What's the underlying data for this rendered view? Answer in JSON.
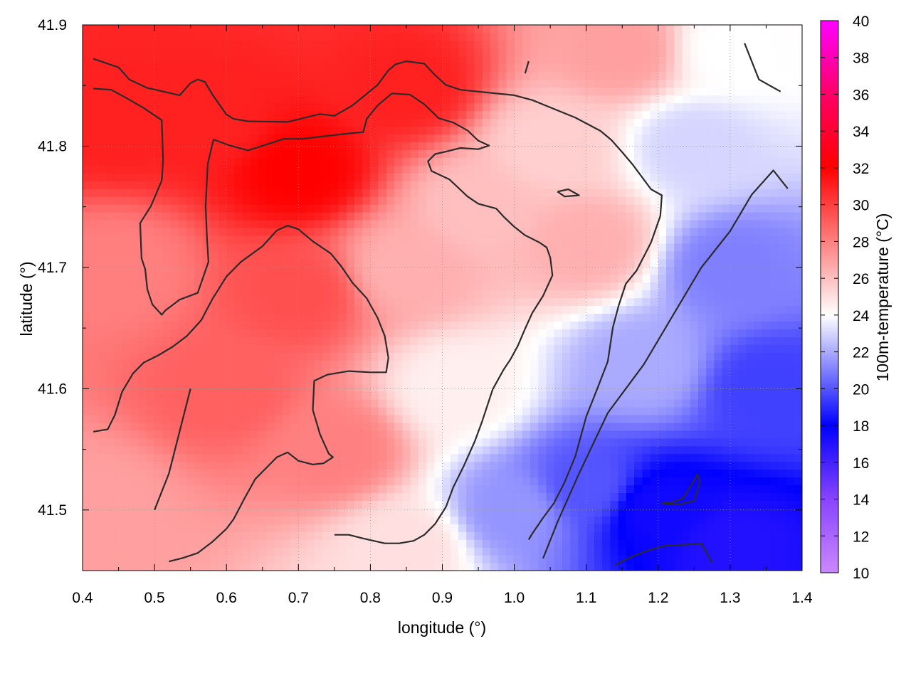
{
  "chart_data": {
    "type": "heatmap",
    "xlabel": "longitude (°)",
    "ylabel": "latitude (°)",
    "colorbar_label": "100m-temperature (°C)",
    "xlim": [
      0.4,
      1.4
    ],
    "ylim": [
      41.45,
      41.9
    ],
    "x_ticks": [
      "0.4",
      "0.5",
      "0.6",
      "0.7",
      "0.8",
      "0.9",
      "1.0",
      "1.1",
      "1.2",
      "1.3",
      "1.4"
    ],
    "y_ticks": [
      "41.5",
      "41.6",
      "41.7",
      "41.8",
      "41.9"
    ],
    "colorbar_range": [
      10,
      40
    ],
    "colorbar_ticks": [
      "10",
      "12",
      "14",
      "16",
      "18",
      "20",
      "22",
      "24",
      "26",
      "28",
      "30",
      "32",
      "34",
      "36",
      "38",
      "40"
    ],
    "colorscale": [
      {
        "value": 10,
        "color": "#cc88ff"
      },
      {
        "value": 14,
        "color": "#8844ff"
      },
      {
        "value": 18,
        "color": "#0000ff"
      },
      {
        "value": 24,
        "color": "#ffffff"
      },
      {
        "value": 32,
        "color": "#ff0000"
      },
      {
        "value": 36,
        "color": "#ff0066"
      },
      {
        "value": 40,
        "color": "#ff00ff"
      }
    ],
    "grid": true,
    "field": {
      "description_points": [
        {
          "lon": 0.45,
          "lat": 41.82,
          "temp": 31
        },
        {
          "lon": 0.7,
          "lat": 41.78,
          "temp": 32
        },
        {
          "lon": 0.58,
          "lat": 41.82,
          "temp": 31
        },
        {
          "lon": 0.85,
          "lat": 41.85,
          "temp": 31
        },
        {
          "lon": 0.6,
          "lat": 41.6,
          "temp": 29
        },
        {
          "lon": 0.7,
          "lat": 41.68,
          "temp": 29.5
        },
        {
          "lon": 0.45,
          "lat": 41.7,
          "temp": 28
        },
        {
          "lon": 0.42,
          "lat": 41.5,
          "temp": 27
        },
        {
          "lon": 0.75,
          "lat": 41.55,
          "temp": 28
        },
        {
          "lon": 0.85,
          "lat": 41.7,
          "temp": 26.5
        },
        {
          "lon": 0.95,
          "lat": 41.75,
          "temp": 26
        },
        {
          "lon": 1.05,
          "lat": 41.8,
          "temp": 25.5
        },
        {
          "lon": 1.1,
          "lat": 41.72,
          "temp": 26.5
        },
        {
          "lon": 0.92,
          "lat": 41.6,
          "temp": 24.5
        },
        {
          "lon": 0.85,
          "lat": 41.47,
          "temp": 25
        },
        {
          "lon": 1.0,
          "lat": 41.5,
          "temp": 21.5
        },
        {
          "lon": 1.1,
          "lat": 41.52,
          "temp": 20
        },
        {
          "lon": 1.2,
          "lat": 41.5,
          "temp": 17.5
        },
        {
          "lon": 1.3,
          "lat": 41.47,
          "temp": 17
        },
        {
          "lon": 1.35,
          "lat": 41.6,
          "temp": 19.5
        },
        {
          "lon": 1.3,
          "lat": 41.7,
          "temp": 21
        },
        {
          "lon": 1.25,
          "lat": 41.8,
          "temp": 23
        },
        {
          "lon": 1.3,
          "lat": 41.88,
          "temp": 24
        },
        {
          "lon": 1.18,
          "lat": 41.62,
          "temp": 22
        },
        {
          "lon": 1.15,
          "lat": 41.88,
          "temp": 27
        }
      ]
    },
    "contours": [
      [
        [
          0.415,
          41.872
        ],
        [
          0.45,
          41.865
        ],
        [
          0.465,
          41.855
        ],
        [
          0.49,
          41.848
        ],
        [
          0.535,
          41.842
        ],
        [
          0.55,
          41.852
        ],
        [
          0.56,
          41.855
        ],
        [
          0.57,
          41.853
        ],
        [
          0.58,
          41.843
        ],
        [
          0.6,
          41.826
        ],
        [
          0.61,
          41.8225
        ],
        [
          0.63,
          41.8205
        ],
        [
          0.685,
          41.82
        ],
        [
          0.73,
          41.8265
        ],
        [
          0.75,
          41.825
        ],
        [
          0.775,
          41.8335
        ],
        [
          0.81,
          41.8505
        ],
        [
          0.825,
          41.8625
        ],
        [
          0.835,
          41.8675
        ],
        [
          0.85,
          41.87
        ],
        [
          0.875,
          41.868
        ],
        [
          0.89,
          41.8585
        ],
        [
          0.905,
          41.8505
        ],
        [
          0.925,
          41.8465
        ],
        [
          1.0,
          41.842
        ],
        [
          1.025,
          41.838
        ],
        [
          1.085,
          41.8235
        ],
        [
          1.12,
          41.8125
        ],
        [
          1.135,
          41.805
        ],
        [
          1.15,
          41.795
        ],
        [
          1.165,
          41.7845
        ],
        [
          1.19,
          41.7645
        ],
        [
          1.205,
          41.7595
        ],
        [
          1.203,
          41.7425
        ],
        [
          1.19,
          41.7205
        ],
        [
          1.17,
          41.6975
        ],
        [
          1.155,
          41.6865
        ],
        [
          1.145,
          41.6685
        ],
        [
          1.137,
          41.6505
        ],
        [
          1.13,
          41.6225
        ],
        [
          1.115,
          41.5995
        ],
        [
          1.1,
          41.577
        ],
        [
          1.085,
          41.5445
        ],
        [
          1.07,
          41.523
        ],
        [
          1.055,
          41.5055
        ],
        [
          1.04,
          41.4935
        ],
        [
          1.025,
          41.4805
        ],
        [
          1.02,
          41.4755
        ]
      ],
      [
        [
          0.415,
          41.8475
        ],
        [
          0.44,
          41.8465
        ],
        [
          0.46,
          41.84
        ],
        [
          0.485,
          41.8315
        ],
        [
          0.51,
          41.8215
        ],
        [
          0.512,
          41.7885
        ],
        [
          0.51,
          41.7715
        ],
        [
          0.495,
          41.7505
        ],
        [
          0.48,
          41.7365
        ],
        [
          0.482,
          41.7075
        ],
        [
          0.487,
          41.6985
        ],
        [
          0.49,
          41.682
        ],
        [
          0.497,
          41.6695
        ],
        [
          0.51,
          41.661
        ],
        [
          0.515,
          41.6645
        ],
        [
          0.535,
          41.6735
        ],
        [
          0.56,
          41.679
        ],
        [
          0.565,
          41.6875
        ],
        [
          0.575,
          41.7045
        ],
        [
          0.573,
          41.7235
        ],
        [
          0.571,
          41.7505
        ],
        [
          0.574,
          41.7855
        ],
        [
          0.582,
          41.8055
        ],
        [
          0.605,
          41.8005
        ],
        [
          0.63,
          41.7965
        ],
        [
          0.68,
          41.806
        ],
        [
          0.705,
          41.806
        ],
        [
          0.77,
          41.8105
        ],
        [
          0.79,
          41.8115
        ],
        [
          0.795,
          41.8225
        ],
        [
          0.81,
          41.8335
        ],
        [
          0.83,
          41.8435
        ],
        [
          0.855,
          41.8425
        ],
        [
          0.875,
          41.8345
        ],
        [
          0.895,
          41.823
        ],
        [
          0.915,
          41.8195
        ],
        [
          0.935,
          41.813
        ],
        [
          0.95,
          41.8045
        ],
        [
          0.965,
          41.8005
        ],
        [
          0.95,
          41.7975
        ],
        [
          0.925,
          41.7985
        ],
        [
          0.905,
          41.7955
        ],
        [
          0.89,
          41.7935
        ],
        [
          0.88,
          41.7875
        ],
        [
          0.885,
          41.7795
        ],
        [
          0.91,
          41.7725
        ],
        [
          0.935,
          41.7585
        ],
        [
          0.95,
          41.7525
        ],
        [
          0.975,
          41.7485
        ],
        [
          0.985,
          41.742
        ],
        [
          1.0,
          41.7335
        ],
        [
          1.015,
          41.7265
        ],
        [
          1.035,
          41.7205
        ],
        [
          1.045,
          41.7165
        ],
        [
          1.05,
          41.708
        ],
        [
          1.053,
          41.6935
        ],
        [
          1.04,
          41.6765
        ],
        [
          1.025,
          41.6625
        ],
        [
          1.015,
          41.6495
        ],
        [
          1.005,
          41.6355
        ],
        [
          0.995,
          41.6245
        ],
        [
          0.985,
          41.6155
        ],
        [
          0.97,
          41.5995
        ],
        [
          0.955,
          41.5725
        ],
        [
          0.945,
          41.5565
        ],
        [
          0.93,
          41.5365
        ],
        [
          0.915,
          41.5185
        ],
        [
          0.905,
          41.5025
        ],
        [
          0.89,
          41.4885
        ],
        [
          0.875,
          41.4795
        ],
        [
          0.86,
          41.4745
        ],
        [
          0.84,
          41.4725
        ],
        [
          0.82,
          41.4725
        ],
        [
          0.79,
          41.4765
        ],
        [
          0.77,
          41.4795
        ],
        [
          0.75,
          41.4795
        ]
      ],
      [
        [
          0.415,
          41.5645
        ],
        [
          0.435,
          41.5665
        ],
        [
          0.445,
          41.5785
        ],
        [
          0.455,
          41.5975
        ],
        [
          0.47,
          41.6125
        ],
        [
          0.485,
          41.6215
        ],
        [
          0.505,
          41.6275
        ],
        [
          0.525,
          41.6345
        ],
        [
          0.545,
          41.6435
        ],
        [
          0.565,
          41.6565
        ],
        [
          0.58,
          41.6735
        ],
        [
          0.6,
          41.6925
        ],
        [
          0.62,
          41.7045
        ],
        [
          0.65,
          41.7175
        ],
        [
          0.67,
          41.7305
        ],
        [
          0.685,
          41.7345
        ],
        [
          0.7,
          41.7315
        ],
        [
          0.72,
          41.7215
        ],
        [
          0.745,
          41.7115
        ],
        [
          0.76,
          41.7005
        ],
        [
          0.775,
          41.6875
        ],
        [
          0.795,
          41.6745
        ],
        [
          0.81,
          41.6585
        ],
        [
          0.82,
          41.6435
        ],
        [
          0.825,
          41.6255
        ],
        [
          0.822,
          41.6135
        ],
        [
          0.8,
          41.6135
        ],
        [
          0.77,
          41.6145
        ],
        [
          0.74,
          41.6115
        ],
        [
          0.722,
          41.6065
        ],
        [
          0.72,
          41.5825
        ],
        [
          0.73,
          41.5625
        ],
        [
          0.742,
          41.5465
        ],
        [
          0.748,
          41.5435
        ],
        [
          0.735,
          41.5385
        ],
        [
          0.72,
          41.5375
        ],
        [
          0.7,
          41.5405
        ],
        [
          0.685,
          41.5475
        ],
        [
          0.67,
          41.5435
        ],
        [
          0.655,
          41.5345
        ],
        [
          0.64,
          41.5255
        ],
        [
          0.625,
          41.5095
        ],
        [
          0.61,
          41.4925
        ],
        [
          0.6,
          41.4845
        ],
        [
          0.58,
          41.4735
        ],
        [
          0.56,
          41.4645
        ],
        [
          0.54,
          41.4605
        ],
        [
          0.52,
          41.4575
        ]
      ],
      [
        [
          1.14,
          41.4545
        ],
        [
          1.16,
          41.4605
        ],
        [
          1.185,
          41.4665
        ],
        [
          1.21,
          41.4705
        ],
        [
          1.24,
          41.4715
        ],
        [
          1.26,
          41.4725
        ],
        [
          1.275,
          41.4565
        ]
      ],
      [
        [
          1.205,
          41.5055
        ],
        [
          1.23,
          41.5045
        ],
        [
          1.25,
          41.5075
        ],
        [
          1.258,
          41.5225
        ],
        [
          1.255,
          41.5295
        ],
        [
          1.235,
          41.5095
        ],
        [
          1.22,
          41.5065
        ],
        [
          1.205,
          41.5055
        ]
      ],
      [
        [
          1.06,
          41.7625
        ],
        [
          1.075,
          41.7645
        ],
        [
          1.09,
          41.7595
        ],
        [
          1.07,
          41.7585
        ],
        [
          1.06,
          41.7625
        ]
      ],
      [
        [
          0.5,
          41.5
        ],
        [
          0.52,
          41.53
        ],
        [
          0.55,
          41.6
        ]
      ],
      [
        [
          1.04,
          41.46
        ],
        [
          1.06,
          41.49
        ],
        [
          1.09,
          41.53
        ],
        [
          1.13,
          41.58
        ],
        [
          1.18,
          41.62
        ],
        [
          1.2,
          41.64
        ],
        [
          1.22,
          41.66
        ],
        [
          1.26,
          41.7
        ],
        [
          1.3,
          41.73
        ],
        [
          1.33,
          41.76
        ],
        [
          1.36,
          41.78
        ],
        [
          1.38,
          41.765
        ]
      ],
      [
        [
          1.015,
          41.86
        ],
        [
          1.02,
          41.87
        ]
      ],
      [
        [
          1.32,
          41.885
        ],
        [
          1.34,
          41.855
        ],
        [
          1.37,
          41.845
        ]
      ]
    ]
  }
}
